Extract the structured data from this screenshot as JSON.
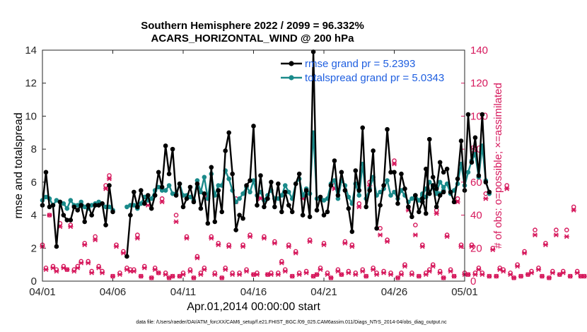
{
  "chart_data": {
    "type": "line",
    "title": "Southern Hemisphere 2022 / 2099 = 96.332%",
    "subtitle": "ACARS_HORIZONTAL_WIND @ 200 hPa",
    "xlabel": "Apr.01,2014 00:00:00 start",
    "ylabel": "rmse and totalspread",
    "y2label": "# of obs: o=possible; ×=assimilated",
    "xlim": [
      0,
      30
    ],
    "ylim": [
      0,
      14
    ],
    "y2lim": [
      0,
      140
    ],
    "x_ticks": [
      0,
      5,
      10,
      15,
      20,
      25,
      30
    ],
    "x_tick_labels": [
      "04/01",
      "04/06",
      "04/11",
      "04/16",
      "04/21",
      "04/26",
      "05/01"
    ],
    "y_ticks": [
      0,
      2,
      4,
      6,
      8,
      10,
      12,
      14
    ],
    "y2_ticks": [
      0,
      20,
      40,
      60,
      80,
      100,
      120,
      140
    ],
    "step": 0.25,
    "series": [
      {
        "name": "rmse grand pr = 5.2393",
        "color": "#000000",
        "axis": "left",
        "segments": [
          {
            "start": 0,
            "values": [
              4.6,
              6.6,
              4.5,
              4.6,
              2.1,
              4.8,
              4.0,
              3.7,
              3.7,
              4.5,
              4.3,
              4.6,
              3.6,
              4.6,
              4.0,
              4.6,
              4.6,
              4.7,
              3.4,
              5.8,
              4.2
            ]
          },
          {
            "start": 6.0,
            "values": [
              1.5,
              4.0,
              5.4,
              4.5,
              5.5,
              4.7,
              5.2,
              4.4,
              5.2,
              6.6,
              5.7,
              8.2,
              6.5,
              8.0,
              5.2,
              5.9,
              4.5,
              5.0,
              5.7,
              4.8,
              5.9,
              4.4,
              5.3,
              3.5,
              6.9,
              3.6,
              5.5,
              4.2,
              7.9,
              9.0,
              6.5,
              3.1,
              4.0,
              3.8,
              5.8,
              6.1,
              9.4,
              4.6,
              6.4,
              4.5,
              5.0,
              6.0,
              4.5,
              5.9,
              4.2,
              5.4,
              4.6,
              4.2,
              5.9,
              6.5,
              4.0,
              5.5,
              3.9,
              13.9,
              4.3,
              5.1,
              4.0,
              4.2,
              5.8,
              7.3,
              5.2,
              6.6,
              5.5,
              4.4,
              3.0,
              6.7,
              5.5,
              9.3,
              4.5,
              5.5,
              7.9,
              3.2,
              4.6,
              5.8,
              9.2,
              6.6,
              6.6,
              4.7,
              6.5,
              5.6,
              4.5,
              3.9,
              5.2,
              4.2,
              4.8,
              6.8,
              5.3,
              5.8,
              4.5,
              5.2,
              5.4
            ]
          },
          {
            "start": 27.0,
            "values": [
              5.0,
              4.1,
              8.6,
              6.3,
              5.6,
              7.2,
              6.6,
              6.8,
              5.4,
              4.8,
              6.2,
              8.5,
              5.5,
              10.1,
              7.2,
              8.7,
              6.4,
              10.1,
              6.0,
              5.4
            ]
          }
        ]
      },
      {
        "name": "totalspread grand pr = 5.0343",
        "color": "#1a8a8a",
        "axis": "left",
        "segments": [
          {
            "start": 0,
            "values": [
              4.9,
              5.1,
              5.0,
              4.6,
              4.9,
              4.8,
              4.7,
              4.4,
              4.9,
              4.6,
              4.6,
              4.8,
              4.5,
              4.4,
              4.6,
              4.7,
              4.8,
              4.7,
              4.5,
              4.5,
              4.3
            ]
          },
          {
            "start": 6.0,
            "values": [
              4.5,
              4.6,
              4.6,
              4.4,
              4.7,
              5.1,
              4.9,
              5.0,
              5.5,
              5.7,
              5.5,
              5.5,
              5.8,
              5.3,
              5.3,
              5.9,
              5.2,
              5.2,
              5.1,
              4.9,
              6.1,
              5.4,
              6.3,
              5.0,
              6.5,
              5.2,
              5.8,
              5.8,
              6.7,
              6.2,
              5.5,
              4.8,
              5.0,
              5.3,
              5.7,
              5.4,
              6.1,
              5.2,
              5.4,
              4.9,
              5.2,
              5.5,
              5.0,
              5.0,
              5.2,
              5.8,
              5.4,
              5.0,
              5.9,
              6.2,
              5.2,
              5.6,
              5.3,
              9.0,
              5.0,
              5.0,
              4.9,
              5.0,
              5.9,
              6.1,
              5.0,
              6.1,
              5.8,
              5.1,
              4.7,
              5.9,
              5.2,
              7.1,
              5.0,
              5.6,
              6.3,
              5.2,
              5.4,
              5.6,
              6.1,
              5.2,
              5.4,
              5.0,
              5.5,
              5.2,
              4.8,
              5.0,
              5.2,
              4.9,
              5.2,
              5.6,
              5.3,
              5.7,
              5.3,
              5.3,
              5.5
            ]
          },
          {
            "start": 27.0,
            "values": [
              5.3,
              5.1,
              6.0,
              5.8,
              5.4,
              6.0,
              5.7,
              5.9,
              5.3,
              5.5,
              5.9,
              7.1,
              5.8,
              6.6,
              7.3,
              7.7,
              6.3,
              8.2,
              6.1,
              5.3
            ]
          }
        ]
      }
    ],
    "obs_possible": {
      "marker": "o",
      "color": "#d6185c",
      "axis": "right",
      "values": [
        22,
        8,
        40,
        9,
        7,
        35,
        9,
        7,
        34,
        7,
        9,
        12,
        23,
        12,
        6,
        27,
        9,
        6,
        58,
        64,
        3,
        22,
        5,
        18,
        8,
        7,
        7,
        28,
        3,
        9,
        47,
        2,
        8,
        5,
        50,
        5,
        2,
        3,
        40,
        3,
        5,
        27,
        7,
        2,
        15,
        5,
        8,
        52,
        27,
        5,
        23,
        2,
        8,
        22,
        5,
        50,
        5,
        22,
        7,
        28,
        4,
        5,
        52,
        27,
        4,
        5,
        24,
        5,
        12,
        7,
        22,
        3,
        18,
        5,
        52,
        6,
        25,
        3,
        4,
        8,
        23,
        5,
        2,
        58,
        7,
        4,
        24,
        6,
        22,
        5,
        47,
        7,
        3,
        60,
        8,
        5,
        32,
        6,
        25,
        5,
        73,
        2,
        5,
        10,
        45,
        5,
        34,
        3,
        22,
        5,
        7,
        10,
        43,
        6,
        2,
        28,
        7,
        3,
        50,
        22,
        5,
        4,
        22,
        5,
        8,
        5,
        53,
        3,
        20,
        3,
        8,
        7,
        58,
        5,
        2,
        10,
        3,
        18,
        4,
        6,
        31,
        8,
        3,
        23,
        2,
        6,
        31,
        4,
        6,
        31,
        3,
        45,
        6,
        3,
        3
      ]
    },
    "obs_assimilated": {
      "marker": "x",
      "color": "#d6185c",
      "axis": "right",
      "values": [
        21,
        7,
        40,
        8,
        6,
        33,
        8,
        7,
        33,
        6,
        8,
        11,
        22,
        11,
        5,
        25,
        8,
        5,
        56,
        62,
        3,
        21,
        4,
        17,
        7,
        6,
        6,
        26,
        3,
        8,
        46,
        2,
        7,
        5,
        48,
        4,
        2,
        3,
        36,
        3,
        4,
        26,
        6,
        2,
        14,
        4,
        7,
        50,
        26,
        4,
        22,
        2,
        7,
        21,
        4,
        48,
        4,
        21,
        6,
        27,
        4,
        4,
        50,
        26,
        4,
        4,
        23,
        4,
        11,
        6,
        21,
        3,
        17,
        4,
        50,
        5,
        24,
        3,
        4,
        7,
        22,
        4,
        2,
        56,
        6,
        4,
        23,
        5,
        21,
        4,
        45,
        6,
        3,
        58,
        7,
        4,
        28,
        5,
        24,
        4,
        71,
        2,
        4,
        9,
        43,
        4,
        28,
        3,
        21,
        4,
        6,
        9,
        41,
        5,
        2,
        27,
        6,
        3,
        48,
        21,
        4,
        4,
        21,
        4,
        7,
        4,
        50,
        3,
        19,
        3,
        7,
        6,
        56,
        4,
        2,
        9,
        3,
        17,
        4,
        5,
        28,
        7,
        3,
        22,
        2,
        5,
        28,
        4,
        5,
        27,
        3,
        43,
        5,
        3,
        3
      ]
    },
    "legend": {
      "position": "top-right",
      "entries": [
        "rmse grand pr = 5.2393",
        "totalspread grand pr = 5.0343"
      ]
    },
    "footer": "data file: /Users/raeder/DAI/ATM_forcXX/CAM6_setup/f.e21.FHIST_BGC.f09_025.CAM6assim.011/Diags_NTrS_2014-04/obs_diag_output.nc"
  }
}
